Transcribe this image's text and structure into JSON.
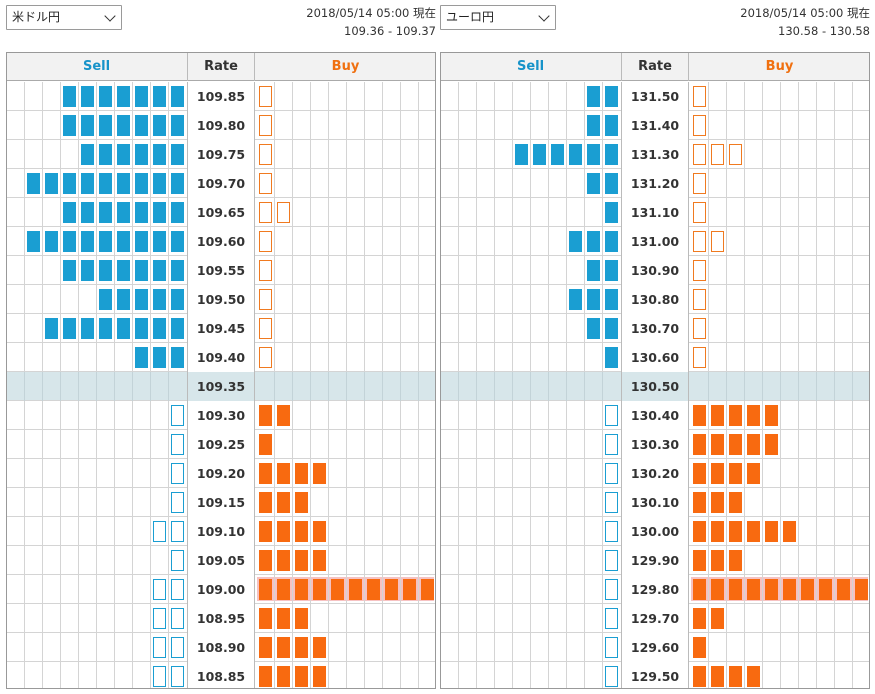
{
  "colors": {
    "sell": "#1a9ed2",
    "buy": "#f86a10",
    "current_row": "#d7e6ea",
    "highlight_row": "#f6c2c2"
  },
  "panels": [
    {
      "pair": "米ドル円",
      "timestamp": "2018/05/14 05:00 現在",
      "range": "109.36 - 109.37",
      "headers": {
        "sell": "Sell",
        "rate": "Rate",
        "buy": "Buy"
      },
      "current_rate": "109.35",
      "highlight_rate": "109.00",
      "rows": [
        {
          "rate": "109.85",
          "sell": 7,
          "sell_type": "solid",
          "buy": 1,
          "buy_type": "outline"
        },
        {
          "rate": "109.80",
          "sell": 7,
          "sell_type": "solid",
          "buy": 1,
          "buy_type": "outline"
        },
        {
          "rate": "109.75",
          "sell": 6,
          "sell_type": "solid",
          "buy": 1,
          "buy_type": "outline"
        },
        {
          "rate": "109.70",
          "sell": 9,
          "sell_type": "solid",
          "buy": 1,
          "buy_type": "outline"
        },
        {
          "rate": "109.65",
          "sell": 7,
          "sell_type": "solid",
          "buy": 2,
          "buy_type": "outline"
        },
        {
          "rate": "109.60",
          "sell": 9,
          "sell_type": "solid",
          "buy": 1,
          "buy_type": "outline"
        },
        {
          "rate": "109.55",
          "sell": 7,
          "sell_type": "solid",
          "buy": 1,
          "buy_type": "outline"
        },
        {
          "rate": "109.50",
          "sell": 5,
          "sell_type": "solid",
          "buy": 1,
          "buy_type": "outline"
        },
        {
          "rate": "109.45",
          "sell": 8,
          "sell_type": "solid",
          "buy": 1,
          "buy_type": "outline"
        },
        {
          "rate": "109.40",
          "sell": 3,
          "sell_type": "solid",
          "buy": 1,
          "buy_type": "outline"
        },
        {
          "rate": "109.35",
          "sell": 0,
          "sell_type": "solid",
          "buy": 0,
          "buy_type": "solid"
        },
        {
          "rate": "109.30",
          "sell": 1,
          "sell_type": "outline",
          "buy": 2,
          "buy_type": "solid"
        },
        {
          "rate": "109.25",
          "sell": 1,
          "sell_type": "outline",
          "buy": 1,
          "buy_type": "solid"
        },
        {
          "rate": "109.20",
          "sell": 1,
          "sell_type": "outline",
          "buy": 4,
          "buy_type": "solid"
        },
        {
          "rate": "109.15",
          "sell": 1,
          "sell_type": "outline",
          "buy": 3,
          "buy_type": "solid"
        },
        {
          "rate": "109.10",
          "sell": 2,
          "sell_type": "outline",
          "buy": 4,
          "buy_type": "solid"
        },
        {
          "rate": "109.05",
          "sell": 1,
          "sell_type": "outline",
          "buy": 4,
          "buy_type": "solid"
        },
        {
          "rate": "109.00",
          "sell": 2,
          "sell_type": "outline",
          "buy": 10,
          "buy_type": "solid"
        },
        {
          "rate": "108.95",
          "sell": 2,
          "sell_type": "outline",
          "buy": 3,
          "buy_type": "solid"
        },
        {
          "rate": "108.90",
          "sell": 2,
          "sell_type": "outline",
          "buy": 4,
          "buy_type": "solid"
        },
        {
          "rate": "108.85",
          "sell": 2,
          "sell_type": "outline",
          "buy": 4,
          "buy_type": "solid"
        }
      ]
    },
    {
      "pair": "ユーロ円",
      "timestamp": "2018/05/14 05:00 現在",
      "range": "130.58 - 130.58",
      "headers": {
        "sell": "Sell",
        "rate": "Rate",
        "buy": "Buy"
      },
      "current_rate": "130.50",
      "highlight_rate": "129.80",
      "rows": [
        {
          "rate": "131.50",
          "sell": 2,
          "sell_type": "solid",
          "buy": 1,
          "buy_type": "outline"
        },
        {
          "rate": "131.40",
          "sell": 2,
          "sell_type": "solid",
          "buy": 1,
          "buy_type": "outline"
        },
        {
          "rate": "131.30",
          "sell": 6,
          "sell_type": "solid",
          "buy": 3,
          "buy_type": "outline"
        },
        {
          "rate": "131.20",
          "sell": 2,
          "sell_type": "solid",
          "buy": 1,
          "buy_type": "outline"
        },
        {
          "rate": "131.10",
          "sell": 1,
          "sell_type": "solid",
          "buy": 1,
          "buy_type": "outline"
        },
        {
          "rate": "131.00",
          "sell": 3,
          "sell_type": "solid",
          "buy": 2,
          "buy_type": "outline"
        },
        {
          "rate": "130.90",
          "sell": 2,
          "sell_type": "solid",
          "buy": 1,
          "buy_type": "outline"
        },
        {
          "rate": "130.80",
          "sell": 3,
          "sell_type": "solid",
          "buy": 1,
          "buy_type": "outline"
        },
        {
          "rate": "130.70",
          "sell": 2,
          "sell_type": "solid",
          "buy": 1,
          "buy_type": "outline"
        },
        {
          "rate": "130.60",
          "sell": 1,
          "sell_type": "solid",
          "buy": 1,
          "buy_type": "outline"
        },
        {
          "rate": "130.50",
          "sell": 0,
          "sell_type": "solid",
          "buy": 0,
          "buy_type": "solid"
        },
        {
          "rate": "130.40",
          "sell": 1,
          "sell_type": "outline",
          "buy": 5,
          "buy_type": "solid"
        },
        {
          "rate": "130.30",
          "sell": 1,
          "sell_type": "outline",
          "buy": 5,
          "buy_type": "solid"
        },
        {
          "rate": "130.20",
          "sell": 1,
          "sell_type": "outline",
          "buy": 4,
          "buy_type": "solid"
        },
        {
          "rate": "130.10",
          "sell": 1,
          "sell_type": "outline",
          "buy": 3,
          "buy_type": "solid"
        },
        {
          "rate": "130.00",
          "sell": 1,
          "sell_type": "outline",
          "buy": 6,
          "buy_type": "solid"
        },
        {
          "rate": "129.90",
          "sell": 1,
          "sell_type": "outline",
          "buy": 3,
          "buy_type": "solid"
        },
        {
          "rate": "129.80",
          "sell": 1,
          "sell_type": "outline",
          "buy": 10,
          "buy_type": "solid"
        },
        {
          "rate": "129.70",
          "sell": 1,
          "sell_type": "outline",
          "buy": 2,
          "buy_type": "solid"
        },
        {
          "rate": "129.60",
          "sell": 1,
          "sell_type": "outline",
          "buy": 1,
          "buy_type": "solid"
        },
        {
          "rate": "129.50",
          "sell": 1,
          "sell_type": "outline",
          "buy": 4,
          "buy_type": "solid"
        }
      ]
    }
  ]
}
